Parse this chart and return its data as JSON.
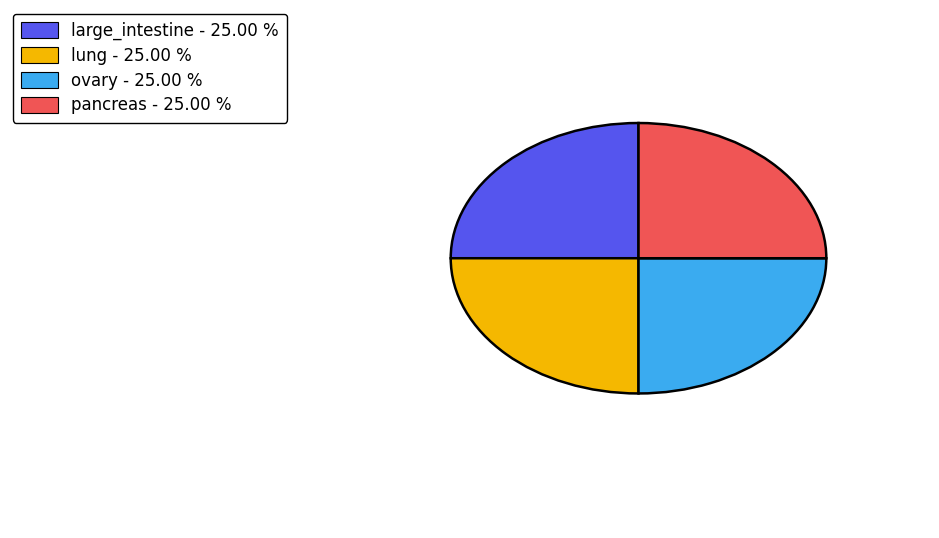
{
  "labels": [
    "large_intestine",
    "lung",
    "ovary",
    "pancreas"
  ],
  "values": [
    25.0,
    25.0,
    25.0,
    25.0
  ],
  "colors": [
    "#5555ee",
    "#f5b800",
    "#3aabf0",
    "#f05555"
  ],
  "legend_labels": [
    "large_intestine - 25.00 %",
    "lung - 25.00 %",
    "ovary - 25.00 %",
    "pancreas - 25.00 %"
  ],
  "startangle": 90,
  "figsize": [
    9.39,
    5.38
  ],
  "dpi": 100,
  "background_color": "#ffffff"
}
